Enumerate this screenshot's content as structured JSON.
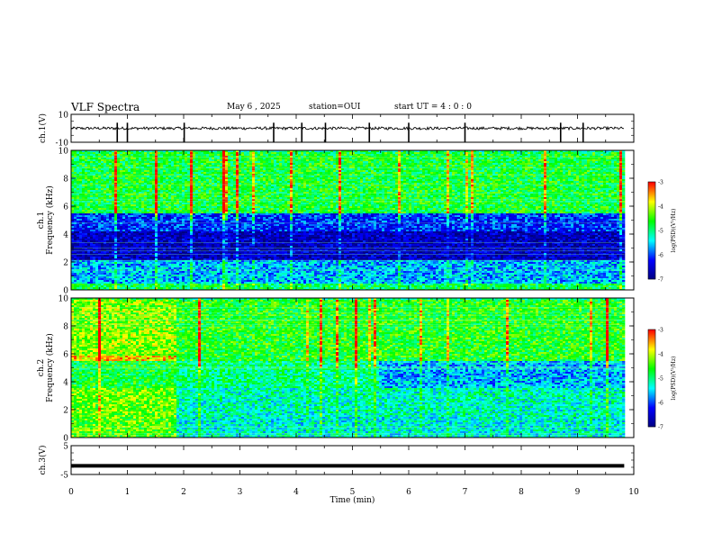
{
  "header": {
    "title": "VLF Spectra",
    "date": "May 6  , 2025",
    "station": "station=OUI",
    "start_ut": "start  UT =   4 : 0  : 0"
  },
  "chart_data": [
    {
      "type": "line",
      "panel": "waveform-ch1",
      "ylabel": "ch.1(V)",
      "ylim": [
        -10,
        10
      ],
      "yticks": [
        "10",
        "-10"
      ],
      "baseline": 0,
      "noise_amplitude": 1,
      "spikes_min": [
        0.82,
        1.0,
        2.01,
        3.6,
        4.1,
        4.52,
        5.3,
        6.0,
        7.0,
        8.7,
        9.1
      ],
      "series_color": "#000000"
    },
    {
      "type": "heatmap",
      "panel": "spectrogram-ch1",
      "ylabel": "ch.1\nFrequency  (kHz)",
      "ylim": [
        0,
        10
      ],
      "yticks": [
        "0",
        "2",
        "4",
        "6",
        "8",
        "10"
      ],
      "colorbar": {
        "label": "log(PSD)(V²/Hz)",
        "range": [
          -7,
          -3
        ],
        "ticks": [
          "-3",
          "-4",
          "-5",
          "-6",
          "-7"
        ]
      },
      "bands_khz": [
        {
          "from": 0,
          "to": 0.5,
          "level": -4.8
        },
        {
          "from": 0.5,
          "to": 2.2,
          "level": -5.6
        },
        {
          "from": 2.2,
          "to": 4.3,
          "level": -6.6
        },
        {
          "from": 4.3,
          "to": 5.6,
          "level": -6.1
        },
        {
          "from": 5.6,
          "to": 10,
          "level": -4.7
        }
      ]
    },
    {
      "type": "heatmap",
      "panel": "spectrogram-ch2",
      "ylabel": "ch.2\nFrequency  (kHz)",
      "ylim": [
        0,
        10
      ],
      "yticks": [
        "0",
        "2",
        "4",
        "6",
        "8",
        "10"
      ],
      "colorbar": {
        "label": "log(PSD)(V²/Hz)",
        "range": [
          -7,
          -3
        ],
        "ticks": [
          "-3",
          "-4",
          "-5",
          "-6",
          "-7"
        ]
      },
      "regime_change_min": [
        1.85,
        5.45
      ],
      "bands_khz": [
        {
          "from": 0,
          "to": 1.5,
          "level": -5.3
        },
        {
          "from": 1.5,
          "to": 3.6,
          "level": -5.2
        },
        {
          "from": 3.6,
          "to": 5.6,
          "level": -5.6
        },
        {
          "from": 5.6,
          "to": 10,
          "level": -4.6
        }
      ]
    },
    {
      "type": "line",
      "panel": "waveform-ch3",
      "ylabel": "ch.3(V)",
      "ylim": [
        -5,
        5
      ],
      "yticks": [
        "5",
        "-5"
      ],
      "baseline": -2,
      "series_color": "#000000"
    }
  ],
  "x_axis": {
    "label": "Time  (min)",
    "range": [
      0,
      10
    ],
    "ticks": [
      "0",
      "1",
      "2",
      "3",
      "4",
      "5",
      "6",
      "7",
      "8",
      "9",
      "10"
    ],
    "data_end": 9.83
  },
  "colors": {
    "colormap": [
      "#00007f",
      "#0000ff",
      "#00ffff",
      "#00ff00",
      "#ffff00",
      "#ff0000",
      "#ffffff"
    ]
  }
}
